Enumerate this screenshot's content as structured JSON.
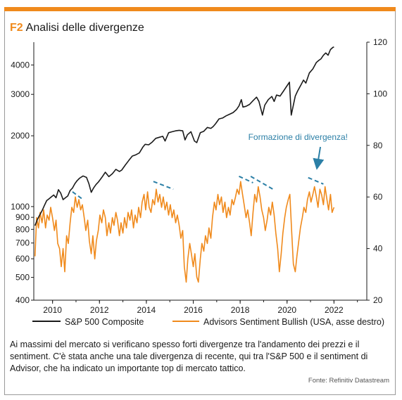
{
  "header": {
    "figure_number": "F2",
    "title": "Analisi delle divergenze"
  },
  "chart_data": {
    "type": "line",
    "x_ticks": [
      "2010",
      "2012",
      "2014",
      "2016",
      "2018",
      "2020",
      "2022"
    ],
    "x_range": [
      2009.2,
      2023.4
    ],
    "left_axis": {
      "scale": "log",
      "ticks": [
        400,
        500,
        600,
        700,
        800,
        900,
        1000,
        2000,
        3000,
        4000
      ],
      "range": [
        400,
        5000
      ]
    },
    "right_axis": {
      "scale": "linear",
      "ticks": [
        20,
        40,
        60,
        80,
        100,
        120
      ],
      "range": [
        20,
        120
      ]
    },
    "series": [
      {
        "name": "S&P 500 Composite",
        "axis": "left",
        "color": "#1a1a1a",
        "points": [
          [
            2009.25,
            830
          ],
          [
            2009.35,
            880
          ],
          [
            2009.45,
            920
          ],
          [
            2009.55,
            960
          ],
          [
            2009.65,
            1010
          ],
          [
            2009.75,
            1060
          ],
          [
            2009.85,
            1080
          ],
          [
            2009.95,
            1100
          ],
          [
            2010.05,
            1120
          ],
          [
            2010.15,
            1090
          ],
          [
            2010.25,
            1180
          ],
          [
            2010.35,
            1140
          ],
          [
            2010.45,
            1070
          ],
          [
            2010.55,
            1090
          ],
          [
            2010.65,
            1110
          ],
          [
            2010.75,
            1170
          ],
          [
            2010.85,
            1200
          ],
          [
            2010.95,
            1250
          ],
          [
            2011.05,
            1290
          ],
          [
            2011.15,
            1320
          ],
          [
            2011.3,
            1350
          ],
          [
            2011.45,
            1330
          ],
          [
            2011.55,
            1250
          ],
          [
            2011.65,
            1150
          ],
          [
            2011.75,
            1200
          ],
          [
            2011.85,
            1240
          ],
          [
            2011.95,
            1270
          ],
          [
            2012.1,
            1330
          ],
          [
            2012.25,
            1400
          ],
          [
            2012.4,
            1340
          ],
          [
            2012.55,
            1380
          ],
          [
            2012.7,
            1440
          ],
          [
            2012.85,
            1410
          ],
          [
            2012.95,
            1430
          ],
          [
            2013.1,
            1500
          ],
          [
            2013.25,
            1570
          ],
          [
            2013.4,
            1640
          ],
          [
            2013.55,
            1660
          ],
          [
            2013.7,
            1690
          ],
          [
            2013.85,
            1790
          ],
          [
            2013.95,
            1840
          ],
          [
            2014.1,
            1830
          ],
          [
            2014.25,
            1880
          ],
          [
            2014.4,
            1950
          ],
          [
            2014.55,
            1970
          ],
          [
            2014.7,
            1990
          ],
          [
            2014.8,
            1900
          ],
          [
            2014.95,
            2060
          ],
          [
            2015.1,
            2080
          ],
          [
            2015.25,
            2100
          ],
          [
            2015.4,
            2110
          ],
          [
            2015.55,
            2100
          ],
          [
            2015.65,
            1920
          ],
          [
            2015.75,
            2020
          ],
          [
            2015.9,
            2080
          ],
          [
            2016.05,
            1900
          ],
          [
            2016.15,
            1870
          ],
          [
            2016.3,
            2060
          ],
          [
            2016.45,
            2090
          ],
          [
            2016.6,
            2170
          ],
          [
            2016.75,
            2150
          ],
          [
            2016.85,
            2190
          ],
          [
            2016.95,
            2250
          ],
          [
            2017.1,
            2360
          ],
          [
            2017.25,
            2380
          ],
          [
            2017.4,
            2430
          ],
          [
            2017.55,
            2470
          ],
          [
            2017.7,
            2510
          ],
          [
            2017.85,
            2590
          ],
          [
            2017.95,
            2680
          ],
          [
            2018.05,
            2850
          ],
          [
            2018.12,
            2650
          ],
          [
            2018.25,
            2670
          ],
          [
            2018.4,
            2720
          ],
          [
            2018.55,
            2820
          ],
          [
            2018.7,
            2920
          ],
          [
            2018.8,
            2800
          ],
          [
            2018.95,
            2450
          ],
          [
            2019.05,
            2700
          ],
          [
            2019.2,
            2850
          ],
          [
            2019.35,
            2940
          ],
          [
            2019.45,
            2800
          ],
          [
            2019.55,
            2980
          ],
          [
            2019.7,
            2950
          ],
          [
            2019.85,
            3100
          ],
          [
            2019.97,
            3230
          ],
          [
            2020.1,
            3380
          ],
          [
            2020.18,
            2450
          ],
          [
            2020.25,
            2650
          ],
          [
            2020.35,
            2950
          ],
          [
            2020.45,
            3100
          ],
          [
            2020.6,
            3300
          ],
          [
            2020.7,
            3450
          ],
          [
            2020.8,
            3350
          ],
          [
            2020.95,
            3700
          ],
          [
            2021.1,
            3850
          ],
          [
            2021.25,
            4100
          ],
          [
            2021.35,
            4180
          ],
          [
            2021.45,
            4250
          ],
          [
            2021.55,
            4400
          ],
          [
            2021.65,
            4500
          ],
          [
            2021.75,
            4400
          ],
          [
            2021.85,
            4650
          ],
          [
            2021.95,
            4750
          ],
          [
            2022.0,
            4770
          ]
        ]
      },
      {
        "name": "Advisors Sentiment Bullish (USA, asse destro)",
        "axis": "right",
        "color": "#f08a1c",
        "points": [
          [
            2009.25,
            37
          ],
          [
            2009.32,
            52
          ],
          [
            2009.4,
            48
          ],
          [
            2009.47,
            54
          ],
          [
            2009.55,
            50
          ],
          [
            2009.62,
            55
          ],
          [
            2009.7,
            48
          ],
          [
            2009.77,
            53
          ],
          [
            2009.85,
            51
          ],
          [
            2009.92,
            56
          ],
          [
            2010.0,
            52
          ],
          [
            2010.08,
            47
          ],
          [
            2010.15,
            51
          ],
          [
            2010.22,
            42
          ],
          [
            2010.3,
            40
          ],
          [
            2010.37,
            33
          ],
          [
            2010.45,
            40
          ],
          [
            2010.52,
            31
          ],
          [
            2010.6,
            45
          ],
          [
            2010.67,
            42
          ],
          [
            2010.75,
            50
          ],
          [
            2010.82,
            56
          ],
          [
            2010.9,
            54
          ],
          [
            2010.97,
            60
          ],
          [
            2011.05,
            56
          ],
          [
            2011.12,
            59
          ],
          [
            2011.2,
            55
          ],
          [
            2011.27,
            57
          ],
          [
            2011.35,
            52
          ],
          [
            2011.42,
            47
          ],
          [
            2011.5,
            51
          ],
          [
            2011.57,
            43
          ],
          [
            2011.65,
            38
          ],
          [
            2011.72,
            45
          ],
          [
            2011.8,
            36
          ],
          [
            2011.87,
            43
          ],
          [
            2011.95,
            47
          ],
          [
            2012.02,
            53
          ],
          [
            2012.1,
            50
          ],
          [
            2012.17,
            55
          ],
          [
            2012.25,
            52
          ],
          [
            2012.32,
            45
          ],
          [
            2012.4,
            50
          ],
          [
            2012.47,
            46
          ],
          [
            2012.55,
            52
          ],
          [
            2012.62,
            49
          ],
          [
            2012.7,
            54
          ],
          [
            2012.77,
            51
          ],
          [
            2012.85,
            45
          ],
          [
            2012.92,
            50
          ],
          [
            2013.0,
            46
          ],
          [
            2013.07,
            52
          ],
          [
            2013.15,
            48
          ],
          [
            2013.22,
            54
          ],
          [
            2013.3,
            51
          ],
          [
            2013.37,
            55
          ],
          [
            2013.45,
            48
          ],
          [
            2013.52,
            53
          ],
          [
            2013.6,
            50
          ],
          [
            2013.67,
            56
          ],
          [
            2013.75,
            52
          ],
          [
            2013.82,
            58
          ],
          [
            2013.9,
            61
          ],
          [
            2013.97,
            55
          ],
          [
            2014.05,
            62
          ],
          [
            2014.12,
            56
          ],
          [
            2014.2,
            54
          ],
          [
            2014.27,
            59
          ],
          [
            2014.35,
            57
          ],
          [
            2014.42,
            63
          ],
          [
            2014.5,
            58
          ],
          [
            2014.57,
            61
          ],
          [
            2014.65,
            56
          ],
          [
            2014.72,
            60
          ],
          [
            2014.8,
            55
          ],
          [
            2014.87,
            58
          ],
          [
            2014.95,
            53
          ],
          [
            2015.02,
            57
          ],
          [
            2015.1,
            52
          ],
          [
            2015.17,
            55
          ],
          [
            2015.25,
            50
          ],
          [
            2015.32,
            53
          ],
          [
            2015.4,
            49
          ],
          [
            2015.47,
            44
          ],
          [
            2015.55,
            47
          ],
          [
            2015.62,
            33
          ],
          [
            2015.7,
            27
          ],
          [
            2015.77,
            36
          ],
          [
            2015.85,
            42
          ],
          [
            2015.92,
            38
          ],
          [
            2016.0,
            33
          ],
          [
            2016.07,
            38
          ],
          [
            2016.15,
            29
          ],
          [
            2016.22,
            27
          ],
          [
            2016.3,
            36
          ],
          [
            2016.37,
            42
          ],
          [
            2016.45,
            39
          ],
          [
            2016.52,
            45
          ],
          [
            2016.6,
            42
          ],
          [
            2016.67,
            48
          ],
          [
            2016.75,
            44
          ],
          [
            2016.82,
            52
          ],
          [
            2016.9,
            58
          ],
          [
            2016.97,
            55
          ],
          [
            2017.05,
            61
          ],
          [
            2017.12,
            57
          ],
          [
            2017.2,
            60
          ],
          [
            2017.27,
            54
          ],
          [
            2017.35,
            58
          ],
          [
            2017.42,
            52
          ],
          [
            2017.5,
            56
          ],
          [
            2017.57,
            53
          ],
          [
            2017.65,
            59
          ],
          [
            2017.72,
            57
          ],
          [
            2017.8,
            60
          ],
          [
            2017.87,
            63
          ],
          [
            2017.95,
            61
          ],
          [
            2018.02,
            66
          ],
          [
            2018.1,
            61
          ],
          [
            2018.17,
            57
          ],
          [
            2018.25,
            52
          ],
          [
            2018.32,
            55
          ],
          [
            2018.4,
            50
          ],
          [
            2018.47,
            45
          ],
          [
            2018.55,
            54
          ],
          [
            2018.62,
            61
          ],
          [
            2018.7,
            58
          ],
          [
            2018.77,
            64
          ],
          [
            2018.85,
            60
          ],
          [
            2018.92,
            55
          ],
          [
            2019.0,
            52
          ],
          [
            2019.07,
            47
          ],
          [
            2019.15,
            51
          ],
          [
            2019.22,
            56
          ],
          [
            2019.3,
            53
          ],
          [
            2019.37,
            58
          ],
          [
            2019.45,
            53
          ],
          [
            2019.52,
            46
          ],
          [
            2019.6,
            40
          ],
          [
            2019.67,
            31
          ],
          [
            2019.75,
            38
          ],
          [
            2019.82,
            46
          ],
          [
            2019.9,
            52
          ],
          [
            2019.97,
            56
          ],
          [
            2020.05,
            59
          ],
          [
            2020.12,
            61
          ],
          [
            2020.2,
            46
          ],
          [
            2020.27,
            34
          ],
          [
            2020.35,
            31
          ],
          [
            2020.42,
            37
          ],
          [
            2020.5,
            43
          ],
          [
            2020.57,
            48
          ],
          [
            2020.65,
            52
          ],
          [
            2020.72,
            56
          ],
          [
            2020.8,
            54
          ],
          [
            2020.87,
            59
          ],
          [
            2020.95,
            62
          ],
          [
            2021.02,
            58
          ],
          [
            2021.1,
            61
          ],
          [
            2021.17,
            64
          ],
          [
            2021.25,
            60
          ],
          [
            2021.32,
            56
          ],
          [
            2021.4,
            63
          ],
          [
            2021.47,
            61
          ],
          [
            2021.55,
            57
          ],
          [
            2021.62,
            64
          ],
          [
            2021.7,
            59
          ],
          [
            2021.77,
            55
          ],
          [
            2021.85,
            61
          ],
          [
            2021.92,
            54
          ],
          [
            2022.0,
            56
          ]
        ]
      }
    ],
    "divergence_lines": [
      {
        "from": [
          2010.85,
          62
        ],
        "to": [
          2011.3,
          59
        ]
      },
      {
        "from": [
          2014.3,
          66
        ],
        "to": [
          2015.15,
          63
        ]
      },
      {
        "from": [
          2017.95,
          68
        ],
        "to": [
          2018.55,
          65.5
        ]
      },
      {
        "from": [
          2018.45,
          68
        ],
        "to": [
          2019.4,
          63
        ]
      },
      {
        "from": [
          2020.9,
          67.5
        ],
        "to": [
          2021.55,
          65
        ]
      }
    ],
    "annotation": {
      "text": "Formazione di divergenza!",
      "points_to": [
        2021.3,
        71
      ]
    },
    "legend": {
      "position": "bottom"
    }
  },
  "caption": {
    "text": "Ai massimi del mercato si verificano spesso forti divergenze tra l'andamento dei prezzi e il sentiment. C'è stata anche una tale divergenza di recente, qui tra l'S&P 500 e il sentiment di Advisor, che ha indicato un importante top di mercato tattico."
  },
  "source": {
    "text": "Fonte: Refinitiv Datastream"
  }
}
